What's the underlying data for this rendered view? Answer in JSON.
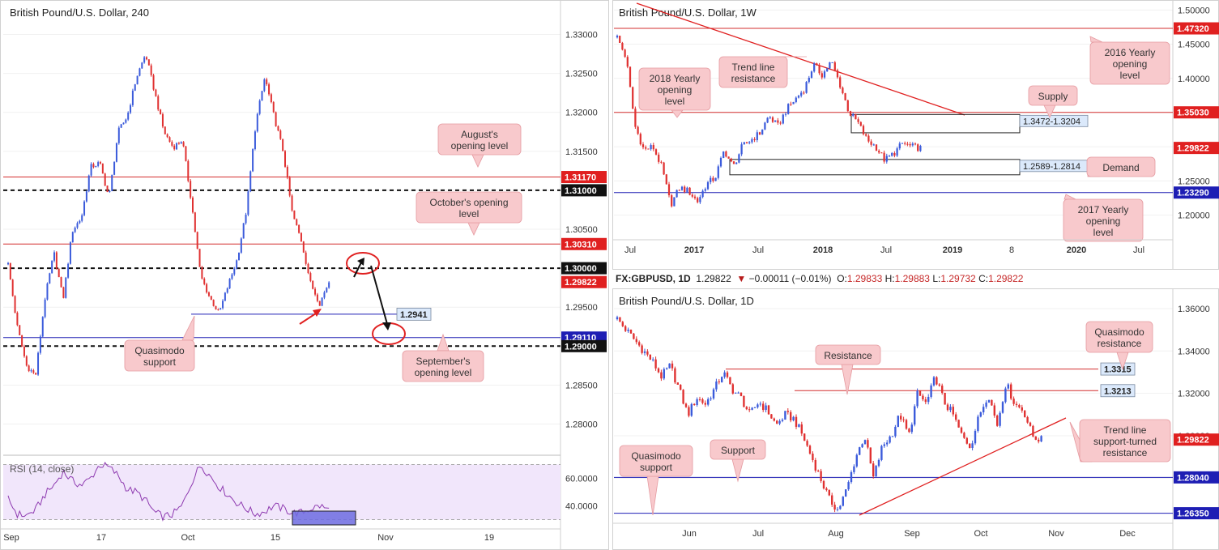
{
  "colors": {
    "bull": "#3b5bdb",
    "bear": "#e03131",
    "support_line": "#1e1eb4",
    "resistance_line": "#d32f2f",
    "callout_bg": "#f8c9cc",
    "callout_border": "#e59aa0",
    "box_label_bg": "#dbe9fb",
    "rsi_bg": "#f1e6fb",
    "rsi_line": "#8e3ab0",
    "price_tag_red": "#e02020",
    "price_tag_black": "#111111",
    "price_tag_blue": "#1e1eb4"
  },
  "header_1d": {
    "symbol": "FX:GBPUSD, 1D",
    "last": "1.29822",
    "change_icon": "triangle-down-icon",
    "change": "−0.00011 (−0.01%)",
    "o_label": "O:",
    "o": "1.29833",
    "h_label": "H:",
    "h": "1.29883",
    "l_label": "L:",
    "l": "1.29732",
    "c_label": "C:",
    "c": "1.29822"
  },
  "chart_data": [
    {
      "id": "h4",
      "type": "candlestick",
      "title": "British Pound/U.S. Dollar, 240",
      "ylim": [
        1.276,
        1.334
      ],
      "y_ticks": [
        "1.33000",
        "1.32500",
        "1.32000",
        "1.31500",
        "1.31000",
        "1.30500",
        "1.30000",
        "1.29500",
        "1.29000",
        "1.28500",
        "1.28000"
      ],
      "y_tick_values": [
        1.33,
        1.325,
        1.32,
        1.315,
        1.31,
        1.305,
        1.3,
        1.295,
        1.29,
        1.285,
        1.28
      ],
      "x_ticks": [
        "Sep",
        "17",
        "Oct",
        "15",
        "Nov",
        "19"
      ],
      "path": [
        1.3005,
        1.2925,
        1.2875,
        1.2862,
        1.296,
        1.302,
        1.296,
        1.3048,
        1.3065,
        1.313,
        1.3135,
        1.309,
        1.3175,
        1.3195,
        1.3245,
        1.3275,
        1.3225,
        1.3175,
        1.3155,
        1.3165,
        1.3085,
        1.299,
        1.2962,
        1.2942,
        1.2978,
        1.3012,
        1.3075,
        1.3185,
        1.3245,
        1.3195,
        1.315,
        1.307,
        1.3035,
        1.298,
        1.2955,
        1.2983
      ],
      "levels": [
        {
          "value": 1.3117,
          "label": "1.31170",
          "style": "solid",
          "color": "#d32f2f",
          "tag": "red"
        },
        {
          "value": 1.31,
          "label": "1.31000",
          "style": "dashed",
          "color": "#111111",
          "tag": "black"
        },
        {
          "value": 1.3031,
          "label": "1.30310",
          "style": "solid",
          "color": "#d32f2f",
          "tag": "red"
        },
        {
          "value": 1.3,
          "label": "1.30000",
          "style": "dashed",
          "color": "#111111",
          "tag": "black"
        },
        {
          "value": 1.29822,
          "label": "1.29822",
          "style": "none",
          "color": "#e02020",
          "tag": "red"
        },
        {
          "value": 1.2911,
          "label": "1.29110",
          "style": "solid",
          "color": "#1e1eb4",
          "tag": "blue"
        },
        {
          "value": 1.29,
          "label": "1.29000",
          "style": "dashed",
          "color": "#111111",
          "tag": "black"
        }
      ],
      "short_level": {
        "value": 1.2941,
        "label": "1.2941"
      },
      "annotations": [
        {
          "text": [
            "August's",
            "opening level"
          ]
        },
        {
          "text": [
            "October's opening",
            "level"
          ]
        },
        {
          "text": [
            "Quasimodo",
            "support"
          ]
        },
        {
          "text": [
            "September's",
            "opening level"
          ]
        }
      ],
      "rsi": {
        "label": "RSI (14, close)",
        "ylim": [
          25,
          75
        ],
        "y_ticks": [
          "60.0000",
          "40.0000"
        ],
        "y_tick_values": [
          60,
          40
        ],
        "bands": [
          70,
          30
        ],
        "path": [
          45,
          34,
          33,
          37,
          48,
          55,
          65,
          58,
          55,
          60,
          70,
          68,
          62,
          52,
          50,
          44,
          35,
          32,
          34,
          40,
          57,
          70,
          62,
          54,
          48,
          42,
          38,
          34,
          36,
          40,
          38,
          35,
          35,
          38,
          40,
          37
        ]
      }
    },
    {
      "id": "w1",
      "type": "candlestick",
      "title": "British Pound/U.S. Dollar, 1W",
      "ylim": [
        1.165,
        1.51
      ],
      "y_ticks": [
        "1.50000",
        "1.45000",
        "1.40000",
        "1.35000",
        "1.30000",
        "1.25000",
        "1.20000"
      ],
      "y_tick_values": [
        1.5,
        1.45,
        1.4,
        1.35,
        1.3,
        1.25,
        1.2
      ],
      "x_ticks": [
        "Jul",
        "2017",
        "Jul",
        "2018",
        "Jul",
        "2019",
        "8",
        "2020",
        "Jul"
      ],
      "path": [
        1.46,
        1.43,
        1.33,
        1.295,
        1.3,
        1.27,
        1.215,
        1.24,
        1.235,
        1.22,
        1.245,
        1.255,
        1.295,
        1.27,
        1.3,
        1.31,
        1.32,
        1.345,
        1.33,
        1.355,
        1.37,
        1.385,
        1.42,
        1.405,
        1.425,
        1.39,
        1.35,
        1.335,
        1.31,
        1.3,
        1.28,
        1.29,
        1.305,
        1.3,
        1.298
      ],
      "levels": [
        {
          "value": 1.4732,
          "label": "1.47320",
          "color": "#d32f2f",
          "tag": "red"
        },
        {
          "value": 1.3503,
          "label": "1.35030",
          "color": "#d32f2f",
          "tag": "red"
        },
        {
          "value": 1.29822,
          "label": "1.29822",
          "color": "#e02020",
          "tag": "red",
          "style": "none"
        },
        {
          "value": 1.2329,
          "label": "1.23290",
          "color": "#1e1eb4",
          "tag": "blue"
        }
      ],
      "zones": [
        {
          "top": 1.3472,
          "bottom": 1.3204,
          "label": "1.3472-1.3204"
        },
        {
          "top": 1.2814,
          "bottom": 1.2589,
          "label": "1.2589-1.2814"
        }
      ],
      "annotations": [
        {
          "text": [
            "Trend line",
            "resistance"
          ]
        },
        {
          "text": [
            "2018 Yearly",
            "opening",
            "level"
          ]
        },
        {
          "text": [
            "2016 Yearly",
            "opening",
            "level"
          ]
        },
        {
          "text": [
            "Supply"
          ]
        },
        {
          "text": [
            "Demand"
          ]
        },
        {
          "text": [
            "2017 Yearly",
            "opening",
            "level"
          ]
        }
      ]
    },
    {
      "id": "d1",
      "type": "candlestick",
      "title": "British Pound/U.S. Dollar, 1D",
      "ylim": [
        1.258,
        1.368
      ],
      "y_ticks": [
        "1.36000",
        "1.34000",
        "1.32000",
        "1.30000",
        "1.28000"
      ],
      "y_tick_values": [
        1.36,
        1.34,
        1.32,
        1.3,
        1.28
      ],
      "x_ticks": [
        "Jun",
        "Jul",
        "Aug",
        "Sep",
        "Oct",
        "Nov",
        "Dec"
      ],
      "path": [
        1.355,
        1.35,
        1.345,
        1.34,
        1.335,
        1.328,
        1.333,
        1.322,
        1.31,
        1.318,
        1.315,
        1.322,
        1.33,
        1.322,
        1.318,
        1.31,
        1.316,
        1.312,
        1.305,
        1.31,
        1.308,
        1.3,
        1.29,
        1.28,
        1.27,
        1.265,
        1.275,
        1.29,
        1.3,
        1.28,
        1.295,
        1.3,
        1.31,
        1.3,
        1.32,
        1.315,
        1.328,
        1.316,
        1.31,
        1.3,
        1.295,
        1.31,
        1.32,
        1.305,
        1.325,
        1.315,
        1.312,
        1.3,
        1.298
      ],
      "levels": [
        {
          "value": 1.3315,
          "label": "1.3315",
          "color": "#d32f2f",
          "tag": "box"
        },
        {
          "value": 1.3213,
          "label": "1.3213",
          "color": "#d32f2f",
          "tag": "box"
        },
        {
          "value": 1.29822,
          "label": "1.29822",
          "color": "#e02020",
          "tag": "red",
          "style": "none"
        },
        {
          "value": 1.2804,
          "label": "1.28040",
          "color": "#1e1eb4",
          "tag": "blue"
        },
        {
          "value": 1.2635,
          "label": "1.26350",
          "color": "#1e1eb4",
          "tag": "blue"
        }
      ],
      "annotations": [
        {
          "text": [
            "Resistance"
          ]
        },
        {
          "text": [
            "Quasimodo",
            "resistance"
          ]
        },
        {
          "text": [
            "Trend line",
            "support-turned",
            "resistance"
          ]
        },
        {
          "text": [
            "Quasimodo",
            "support"
          ]
        },
        {
          "text": [
            "Support"
          ]
        }
      ]
    }
  ]
}
